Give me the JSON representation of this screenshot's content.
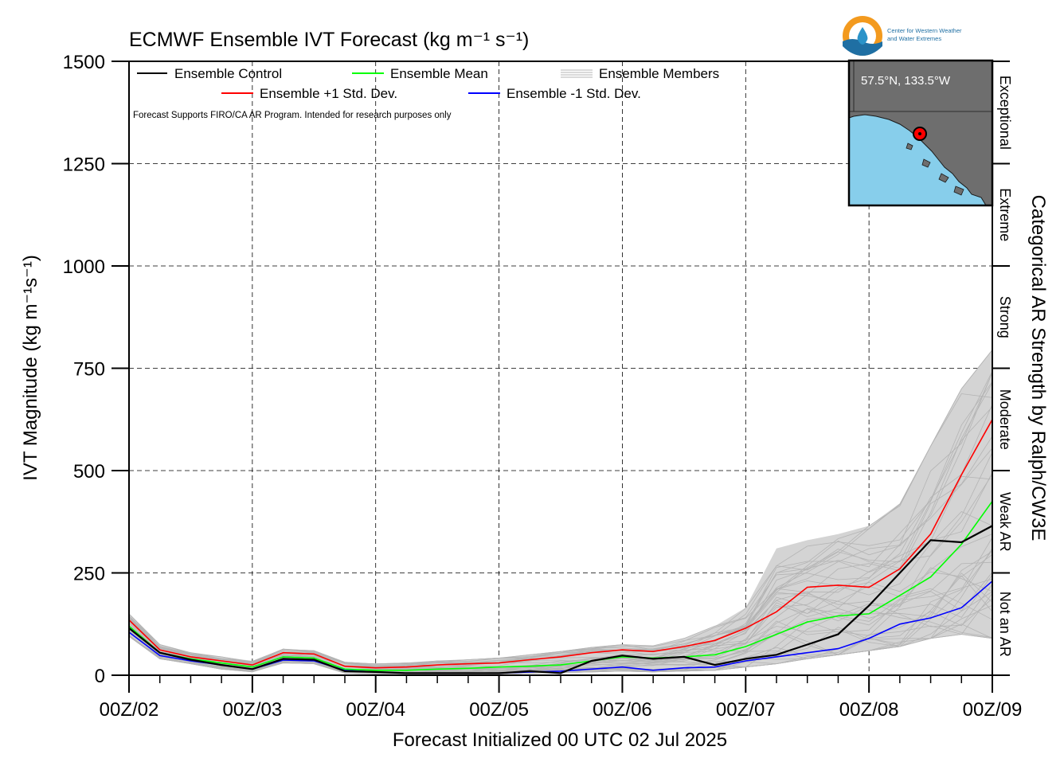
{
  "title": "ECMWF Ensemble IVT Forecast (kg m⁻¹ s⁻¹)",
  "logo": {
    "line1": "Center for Western Weather",
    "line2": "and Water Extremes",
    "icon": "cw3e-water-drop-logo"
  },
  "note": "Forecast Supports FIRO/CA AR Program. Intended for research purposes only",
  "inset_map": {
    "label": "57.5°N, 133.5°W",
    "ocean_color": "#87ceeb",
    "land_color": "#6e6e6e",
    "marker_color": "#ff0000"
  },
  "right_label": "Categorical AR Strength by Ralph/CW3E",
  "categories": [
    {
      "label": "Not an AR",
      "from": 0,
      "to": 250
    },
    {
      "label": "Weak AR",
      "from": 250,
      "to": 500
    },
    {
      "label": "Moderate",
      "from": 500,
      "to": 750
    },
    {
      "label": "Strong",
      "from": 750,
      "to": 1000
    },
    {
      "label": "Extreme",
      "from": 1000,
      "to": 1250
    },
    {
      "label": "Exceptional",
      "from": 1250,
      "to": 1500
    }
  ],
  "chart_data": {
    "type": "line",
    "title": "ECMWF Ensemble IVT Forecast (kg m⁻¹ s⁻¹)",
    "xlabel": "Forecast Initialized 00 UTC 02 Jul 2025",
    "ylabel": "IVT Magnitude (kg m⁻¹s⁻¹)",
    "x_tick_labels": [
      "00Z/02",
      "00Z/03",
      "00Z/04",
      "00Z/05",
      "00Z/06",
      "00Z/07",
      "00Z/08",
      "00Z/09"
    ],
    "x_unit": "hours since 00Z/02",
    "xlim": [
      0,
      168
    ],
    "ylim": [
      0,
      1500
    ],
    "yticks": [
      0,
      250,
      500,
      750,
      1000,
      1250,
      1500
    ],
    "grid": true,
    "legend_position": "top-left",
    "x": [
      0,
      6,
      12,
      18,
      24,
      30,
      36,
      42,
      48,
      54,
      60,
      66,
      72,
      78,
      84,
      90,
      96,
      102,
      108,
      114,
      120,
      126,
      132,
      138,
      144,
      150,
      156,
      162,
      168
    ],
    "series": [
      {
        "name": "Ensemble Control",
        "color": "#000000",
        "values": [
          115,
          55,
          38,
          25,
          15,
          40,
          38,
          10,
          8,
          5,
          5,
          5,
          5,
          10,
          5,
          35,
          48,
          40,
          45,
          25,
          40,
          50,
          75,
          100,
          170,
          250,
          330,
          325,
          365
        ]
      },
      {
        "name": "Ensemble Mean",
        "color": "#00ff00",
        "values": [
          120,
          55,
          40,
          30,
          20,
          45,
          42,
          15,
          12,
          12,
          15,
          17,
          20,
          22,
          25,
          35,
          45,
          42,
          45,
          50,
          70,
          100,
          130,
          145,
          150,
          195,
          240,
          320,
          425
        ]
      },
      {
        "name": "Ensemble +1 Std. Dev.",
        "color": "#ff0000",
        "values": [
          135,
          62,
          45,
          35,
          25,
          55,
          52,
          22,
          18,
          20,
          25,
          28,
          30,
          38,
          45,
          55,
          62,
          58,
          70,
          85,
          115,
          155,
          215,
          220,
          215,
          260,
          345,
          490,
          625
        ]
      },
      {
        "name": "Ensemble -1 Std. Dev.",
        "color": "#0000ff",
        "values": [
          105,
          48,
          35,
          25,
          15,
          37,
          35,
          12,
          8,
          5,
          5,
          5,
          5,
          8,
          10,
          15,
          20,
          12,
          18,
          20,
          35,
          45,
          55,
          65,
          90,
          125,
          140,
          165,
          230
        ]
      }
    ],
    "members": {
      "name": "Ensemble Members",
      "color": "#b4b4b4",
      "spread_low": [
        95,
        40,
        28,
        15,
        8,
        30,
        28,
        5,
        3,
        2,
        2,
        3,
        3,
        5,
        6,
        8,
        10,
        8,
        10,
        12,
        20,
        28,
        40,
        50,
        60,
        70,
        90,
        100,
        90
      ],
      "spread_high": [
        150,
        75,
        55,
        45,
        35,
        65,
        60,
        32,
        28,
        30,
        35,
        38,
        42,
        50,
        58,
        68,
        75,
        72,
        90,
        120,
        165,
        310,
        330,
        345,
        365,
        420,
        560,
        700,
        795
      ]
    }
  }
}
